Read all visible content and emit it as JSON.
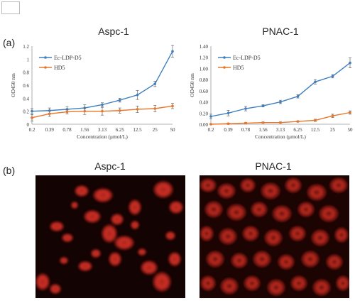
{
  "panel_a_label": "(a)",
  "panel_b_label": "(b)",
  "chart_data": [
    {
      "type": "line",
      "title": "Aspc-1",
      "xlabel": "Concentration (μmol/L)",
      "ylabel": "OD450 nm",
      "categories": [
        "0.2",
        "0.39",
        "0.78",
        "1.56",
        "3.13",
        "6.25",
        "12.5",
        "25",
        "50"
      ],
      "yticks": [
        "0",
        "0.2",
        "0.4",
        "0.6",
        "0.8",
        "1",
        "1.2"
      ],
      "ylim": [
        0,
        1.2
      ],
      "legend_position": "top-left",
      "series": [
        {
          "name": "Ec-LDP-D5",
          "color": "#3f7fbf",
          "values": [
            0.2,
            0.21,
            0.23,
            0.25,
            0.3,
            0.37,
            0.45,
            0.62,
            1.12
          ],
          "errors": [
            0.04,
            0.04,
            0.04,
            0.05,
            0.03,
            0.03,
            0.07,
            0.04,
            0.09
          ]
        },
        {
          "name": "HD5",
          "color": "#e8762a",
          "values": [
            0.1,
            0.16,
            0.19,
            0.2,
            0.2,
            0.21,
            0.23,
            0.24,
            0.28
          ],
          "errors": [
            0.05,
            0.04,
            0.03,
            0.05,
            0.06,
            0.04,
            0.05,
            0.05,
            0.04
          ]
        }
      ]
    },
    {
      "type": "line",
      "title": "PNAC-1",
      "xlabel": "Concentration (μmol/L)",
      "ylabel": "OD450 nm",
      "categories": [
        "0.2",
        "0.39",
        "0.78",
        "1.56",
        "3.13",
        "6.25",
        "12.5",
        "25",
        "50"
      ],
      "yticks": [
        "0.00",
        "0.20",
        "0.40",
        "0.60",
        "0.80",
        "1.00",
        "1.20",
        "1.40"
      ],
      "ylim": [
        0,
        1.4
      ],
      "legend_position": "top-left",
      "series": [
        {
          "name": "Ec-LDP-D5",
          "color": "#3f7fbf",
          "values": [
            0.14,
            0.2,
            0.28,
            0.33,
            0.4,
            0.5,
            0.76,
            0.86,
            1.1
          ],
          "errors": [
            0.04,
            0.05,
            0.04,
            0.02,
            0.03,
            0.03,
            0.04,
            0.03,
            0.09
          ]
        },
        {
          "name": "HD5",
          "color": "#e8762a",
          "values": [
            0.0,
            0.01,
            0.02,
            0.03,
            0.03,
            0.05,
            0.07,
            0.15,
            0.21
          ],
          "errors": [
            0.01,
            0.01,
            0.01,
            0.01,
            0.01,
            0.01,
            0.02,
            0.03,
            0.03
          ]
        }
      ]
    }
  ],
  "micrographs": [
    {
      "title": "Aspc-1"
    },
    {
      "title": "PNAC-1"
    }
  ]
}
